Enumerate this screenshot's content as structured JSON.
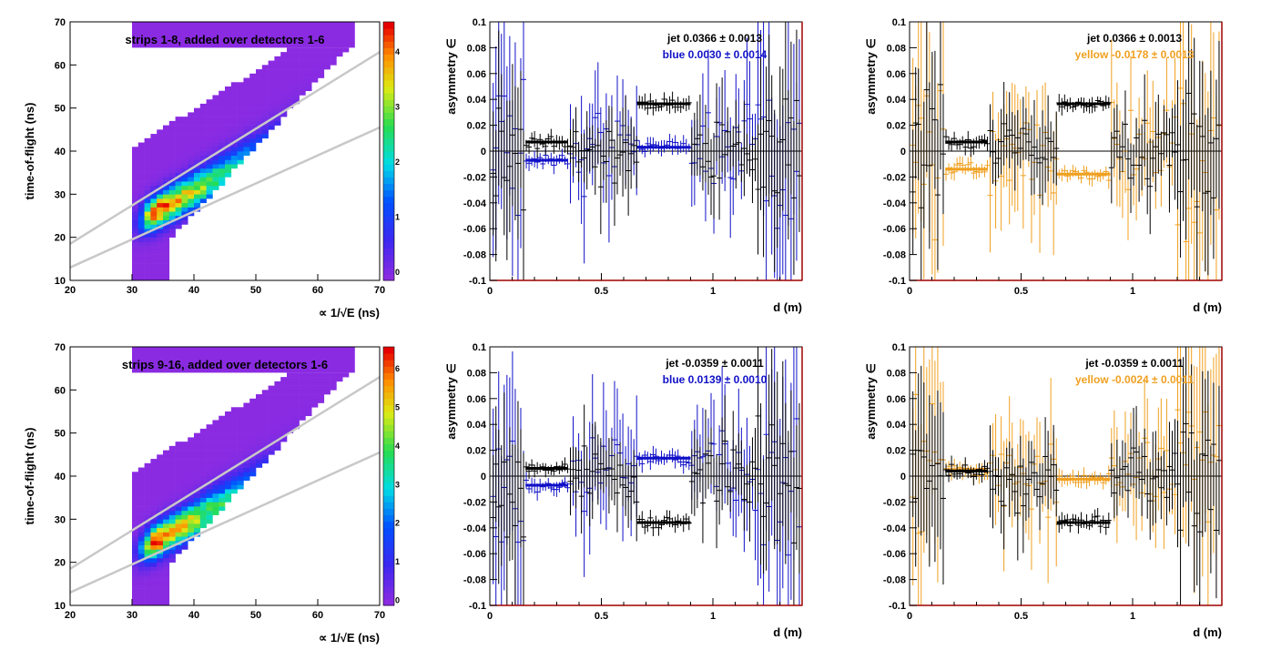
{
  "colors": {
    "blue": "#1010c8",
    "yellow": "#f0a020",
    "black": "#000000",
    "axis_right": "#a00000",
    "fit_lines": "#c8c8c8",
    "heatmap_base": "#8a2be2"
  },
  "chart_data": [
    {
      "type": "heatmap",
      "label": "strips 1-8, added over detectors 1-6",
      "ylabel": "time-of-flight (ns)",
      "xlabel": "∝ 1/√E (ns)",
      "xlim": [
        20,
        70
      ],
      "ylim": [
        10,
        70
      ],
      "xticks": [
        "20",
        "30",
        "40",
        "50",
        "60",
        "70"
      ],
      "yticks": [
        "10",
        "20",
        "30",
        "40",
        "50",
        "60",
        "70"
      ],
      "zticks": [
        "4",
        "3",
        "2",
        "1",
        "0"
      ],
      "bands": {
        "upper": [
          [
            20,
            18.5
          ],
          [
            70,
            63
          ]
        ],
        "lower": [
          [
            20,
            13
          ],
          [
            70,
            45.5
          ]
        ]
      },
      "ridge": {
        "peak": [
          34,
          26
        ],
        "slope": 0.79
      }
    },
    {
      "type": "scatter",
      "ylabel": "asymmetry ∈",
      "xlabel": "d (m)",
      "xlim": [
        0,
        1.4
      ],
      "ylim": [
        -0.1,
        0.1
      ],
      "xticks": [
        "0",
        "0.5",
        "1"
      ],
      "yticks": [
        "-0.1",
        "-0.08",
        "-0.06",
        "-0.04",
        "-0.02",
        "0",
        "0.02",
        "0.04",
        "0.06",
        "0.08",
        "0.1"
      ],
      "annotations": [
        {
          "name": "jet",
          "value": "0.0366 ± 0.0013",
          "color": "black"
        },
        {
          "name": "blue",
          "value": "0.0030 ± 0.0014",
          "color": "blue"
        }
      ],
      "series": [
        {
          "color": "black",
          "fits": [
            [
              0.16,
              0.35,
              0.007
            ],
            [
              0.66,
              0.9,
              0.0366
            ]
          ],
          "seed": 11
        },
        {
          "color": "blue",
          "fits": [
            [
              0.16,
              0.35,
              -0.007
            ],
            [
              0.66,
              0.9,
              0.003
            ]
          ],
          "seed": 23
        }
      ]
    },
    {
      "type": "scatter",
      "ylabel": "asymmetry ∈",
      "xlabel": "d (m)",
      "xlim": [
        0,
        1.4
      ],
      "ylim": [
        -0.1,
        0.1
      ],
      "xticks": [
        "0",
        "0.5",
        "1"
      ],
      "yticks": [
        "-0.1",
        "-0.08",
        "-0.06",
        "-0.04",
        "-0.02",
        "0",
        "0.02",
        "0.04",
        "0.06",
        "0.08",
        "0.1"
      ],
      "annotations": [
        {
          "name": "jet",
          "value": "0.0366 ± 0.0013",
          "color": "black"
        },
        {
          "name": "yellow",
          "value": "-0.0178 ± 0.0013",
          "color": "yellow"
        }
      ],
      "series": [
        {
          "color": "black",
          "fits": [
            [
              0.16,
              0.35,
              0.007
            ],
            [
              0.66,
              0.9,
              0.0366
            ]
          ],
          "seed": 31
        },
        {
          "color": "yellow",
          "fits": [
            [
              0.16,
              0.35,
              -0.014
            ],
            [
              0.66,
              0.9,
              -0.0178
            ]
          ],
          "seed": 47
        }
      ]
    },
    {
      "type": "heatmap",
      "label": "strips 9-16, added over detectors 1-6",
      "ylabel": "time-of-flight (ns)",
      "xlabel": "∝ 1/√E (ns)",
      "xlim": [
        20,
        70
      ],
      "ylim": [
        10,
        70
      ],
      "xticks": [
        "20",
        "30",
        "40",
        "50",
        "60",
        "70"
      ],
      "yticks": [
        "10",
        "20",
        "30",
        "40",
        "50",
        "60",
        "70"
      ],
      "zticks": [
        "6",
        "5",
        "4",
        "3",
        "2",
        "1",
        "0"
      ],
      "bands": {
        "upper": [
          [
            20,
            18.5
          ],
          [
            70,
            63
          ]
        ],
        "lower": [
          [
            20,
            13
          ],
          [
            70,
            45.5
          ]
        ]
      },
      "ridge": {
        "peak": [
          34,
          25
        ],
        "slope": 0.8
      }
    },
    {
      "type": "scatter",
      "ylabel": "asymmetry ∈",
      "xlabel": "d (m)",
      "xlim": [
        0,
        1.4
      ],
      "ylim": [
        -0.1,
        0.1
      ],
      "xticks": [
        "0",
        "0.5",
        "1"
      ],
      "yticks": [
        "-0.1",
        "-0.08",
        "-0.06",
        "-0.04",
        "-0.02",
        "0",
        "0.02",
        "0.04",
        "0.06",
        "0.08",
        "0.1"
      ],
      "annotations": [
        {
          "name": "jet",
          "value": "-0.0359 ± 0.0011",
          "color": "black"
        },
        {
          "name": "blue",
          "value": "0.0139 ± 0.0010",
          "color": "blue"
        }
      ],
      "series": [
        {
          "color": "black",
          "fits": [
            [
              0.16,
              0.35,
              0.006
            ],
            [
              0.66,
              0.9,
              -0.0359
            ]
          ],
          "seed": 53
        },
        {
          "color": "blue",
          "fits": [
            [
              0.16,
              0.35,
              -0.007
            ],
            [
              0.66,
              0.9,
              0.0139
            ]
          ],
          "seed": 67
        }
      ]
    },
    {
      "type": "scatter",
      "ylabel": "asymmetry ∈",
      "xlabel": "d (m)",
      "xlim": [
        0,
        1.4
      ],
      "ylim": [
        -0.1,
        0.1
      ],
      "xticks": [
        "0",
        "0.5",
        "1"
      ],
      "yticks": [
        "-0.1",
        "-0.08",
        "-0.06",
        "-0.04",
        "-0.02",
        "0",
        "0.02",
        "0.04",
        "0.06",
        "0.08",
        "0.1"
      ],
      "annotations": [
        {
          "name": "jet",
          "value": "-0.0359 ± 0.0011",
          "color": "black"
        },
        {
          "name": "yellow",
          "value": "-0.0024 ± 0.0011",
          "color": "yellow"
        }
      ],
      "series": [
        {
          "color": "black",
          "fits": [
            [
              0.16,
              0.35,
              0.004
            ],
            [
              0.66,
              0.9,
              -0.0359
            ]
          ],
          "seed": 71
        },
        {
          "color": "yellow",
          "fits": [
            [
              0.16,
              0.35,
              0.005
            ],
            [
              0.66,
              0.9,
              -0.0024
            ]
          ],
          "seed": 89
        }
      ]
    }
  ]
}
